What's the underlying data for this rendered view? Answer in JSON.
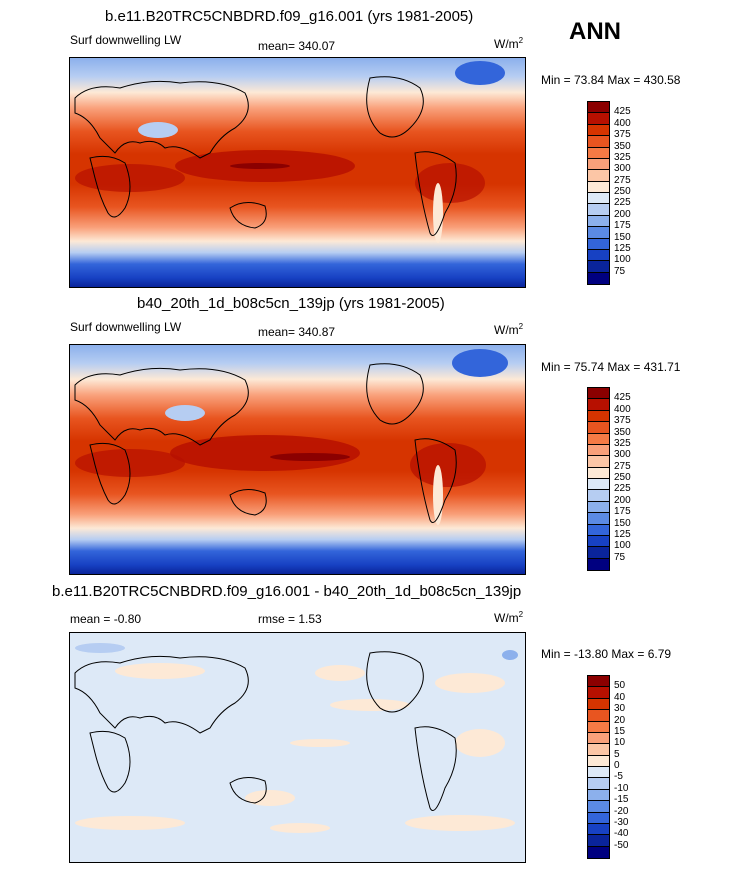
{
  "season": "ANN",
  "panels": [
    {
      "title": "b.e11.B20TRC5CNBDRD.f09_g16.001 (yrs 1981-2005)",
      "left_label": "Surf downwelling LW",
      "center_label": "mean= 340.07",
      "units_base": "W/m",
      "units_exp": "2",
      "minmax": "Min =  73.84 Max = 430.58"
    },
    {
      "title": "b40_20th_1d_b08c5cn_139jp (yrs 1981-2005)",
      "left_label": "Surf downwelling LW",
      "center_label": "mean= 340.87",
      "units_base": "W/m",
      "units_exp": "2",
      "minmax": "Min =  75.74 Max = 431.71"
    },
    {
      "title": "b.e11.B20TRC5CNBDRD.f09_g16.001 - b40_20th_1d_b08c5cn_139jp",
      "left_label": "mean =  -0.80",
      "center_label": "rmse =   1.53",
      "units_base": "W/m",
      "units_exp": "2",
      "minmax": "Min = -13.80 Max =   6.79"
    }
  ],
  "chart_data": [
    {
      "type": "heatmap",
      "title": "b.e11.B20TRC5CNBDRD.f09_g16.001 (yrs 1981-2005)",
      "variable": "Surf downwelling LW",
      "mean": 340.07,
      "min": 73.84,
      "max": 430.58,
      "colorbar_levels": [
        "425",
        "400",
        "375",
        "350",
        "325",
        "300",
        "275",
        "250",
        "225",
        "200",
        "175",
        "150",
        "125",
        "100",
        "75"
      ],
      "colorbar_colors": [
        "#8b0000",
        "#b71000",
        "#d63400",
        "#e85520",
        "#f57a45",
        "#f9a07a",
        "#fcc6a6",
        "#fde9d6",
        "#dde9f7",
        "#b6cdf2",
        "#8cb0ec",
        "#5b8ae4",
        "#3365da",
        "#1741c3",
        "#0a249b",
        "#000080"
      ]
    },
    {
      "type": "heatmap",
      "title": "b40_20th_1d_b08c5cn_139jp (yrs 1981-2005)",
      "variable": "Surf downwelling LW",
      "mean": 340.87,
      "min": 75.74,
      "max": 431.71,
      "colorbar_levels": [
        "425",
        "400",
        "375",
        "350",
        "325",
        "300",
        "275",
        "250",
        "225",
        "200",
        "175",
        "150",
        "125",
        "100",
        "75"
      ],
      "colorbar_colors": [
        "#8b0000",
        "#b71000",
        "#d63400",
        "#e85520",
        "#f57a45",
        "#f9a07a",
        "#fcc6a6",
        "#fde9d6",
        "#dde9f7",
        "#b6cdf2",
        "#8cb0ec",
        "#5b8ae4",
        "#3365da",
        "#1741c3",
        "#0a249b",
        "#000080"
      ]
    },
    {
      "type": "heatmap",
      "title": "b.e11.B20TRC5CNBDRD.f09_g16.001 - b40_20th_1d_b08c5cn_139jp",
      "mean": -0.8,
      "rmse": 1.53,
      "min": -13.8,
      "max": 6.79,
      "colorbar_levels": [
        "50",
        "40",
        "30",
        "20",
        "15",
        "10",
        "5",
        "0",
        "-5",
        "-10",
        "-15",
        "-20",
        "-30",
        "-40",
        "-50"
      ],
      "colorbar_colors": [
        "#8b0000",
        "#b71000",
        "#d63400",
        "#e85520",
        "#f57a45",
        "#f9a07a",
        "#fcc6a6",
        "#fde9d6",
        "#dde9f7",
        "#b6cdf2",
        "#8cb0ec",
        "#5b8ae4",
        "#3365da",
        "#1741c3",
        "#0a249b",
        "#000080"
      ]
    }
  ]
}
